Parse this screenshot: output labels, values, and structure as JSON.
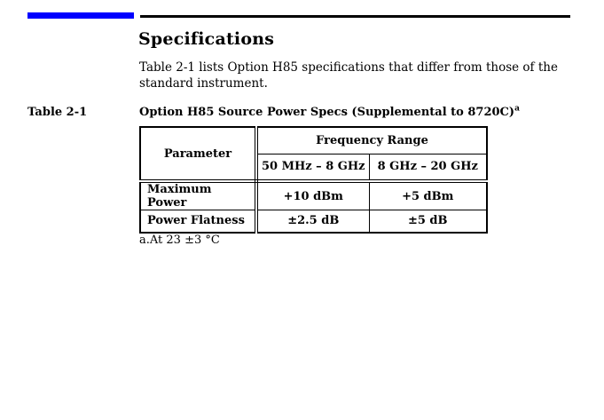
{
  "page": {
    "heading": "Specifications",
    "intro": "Table 2-1 lists Option H85 specifications that differ from those of the standard instrument.",
    "table_label": "Table 2-1",
    "table_title": "Option H85 Source Power Specs (Supplemental to 8720C)",
    "table_title_footnote_marker": "a",
    "footnote": "a.At 23 ±3 °C"
  },
  "colors": {
    "accent_blue": "#0000ff",
    "rule_black": "#000000",
    "text": "#000000",
    "background": "#ffffff"
  },
  "spec_table": {
    "corner_header": "Parameter",
    "group_header": "Frequency Range",
    "column_headers": [
      "50 MHz – 8 GHz",
      "8 GHz – 20 GHz"
    ],
    "rows": [
      {
        "parameter": "Maximum Power",
        "values": [
          "+10 dBm",
          "+5 dBm"
        ]
      },
      {
        "parameter": "Power Flatness",
        "values": [
          "±2.5 dB",
          "±5 dB"
        ]
      }
    ]
  }
}
